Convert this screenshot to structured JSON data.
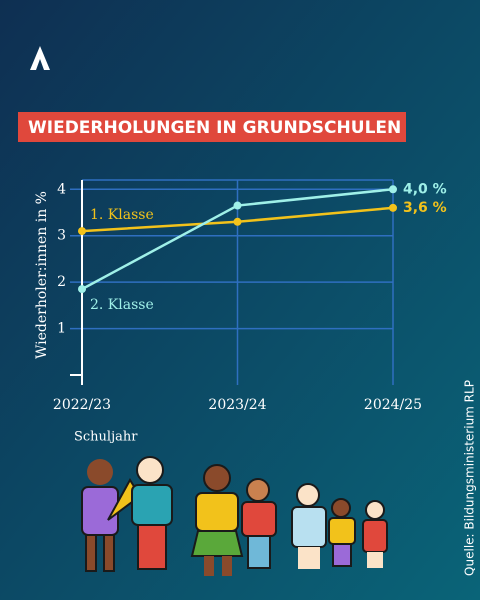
{
  "chart_data": {
    "type": "line",
    "title": "WIEDERHOLUNGEN IN GRUNDSCHULEN",
    "y_label": "Wiederholer:innen in %",
    "x_label": "Schuljahr",
    "source": "Quelle: Bildungsministerium RLP",
    "categories": [
      "2022/23",
      "2023/24",
      "2024/25"
    ],
    "series": [
      {
        "name": "1. Klasse",
        "color": "#f2c21b",
        "values": [
          3.1,
          3.3,
          3.6
        ],
        "value_labels": [
          null,
          null,
          "3,6 %"
        ]
      },
      {
        "name": "2. Klasse",
        "color": "#9ff0e8",
        "values": [
          1.85,
          3.65,
          4.0
        ],
        "value_labels": [
          null,
          null,
          "4,0 %"
        ]
      }
    ],
    "ylim": [
      0,
      4.2
    ],
    "yticks": [
      1,
      2,
      3,
      4
    ],
    "grid": true
  }
}
